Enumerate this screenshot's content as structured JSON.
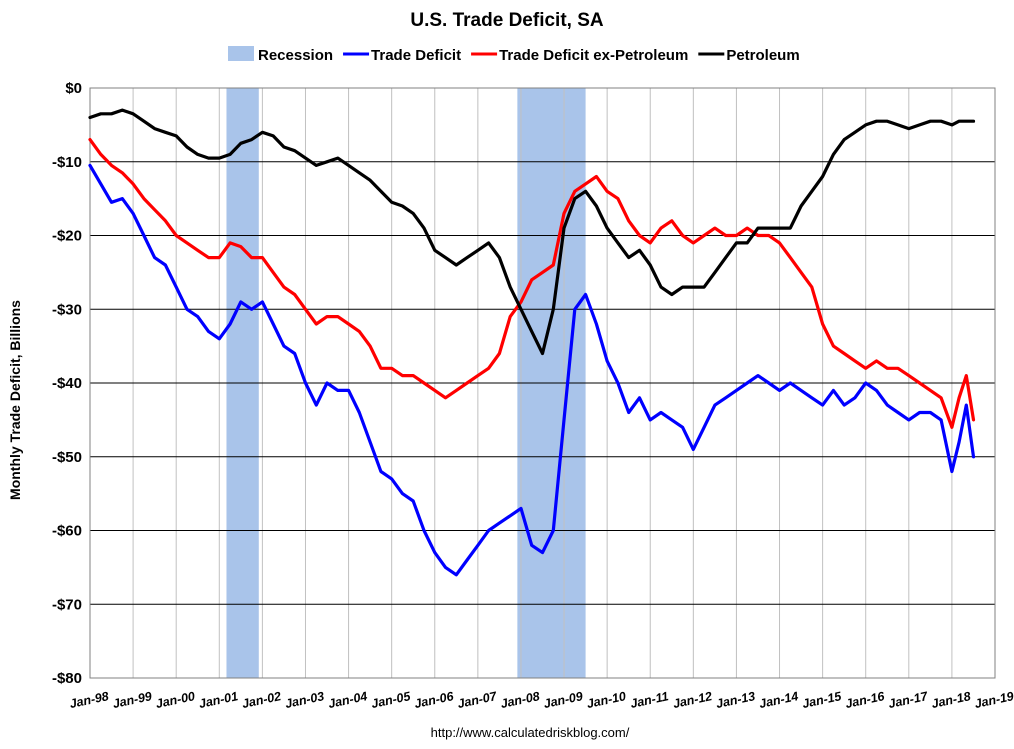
{
  "chart_data": {
    "type": "line",
    "title": "U.S. Trade Deficit, SA",
    "ylabel": "Monthly Trade Deficit, Billions",
    "xlabel": "",
    "source": "http://www.calculatedriskblog.com/",
    "ylim": [
      -80,
      0
    ],
    "xlim": [
      "1998-01",
      "2019-01"
    ],
    "grid": true,
    "legend_position": "top",
    "y_ticks": [
      {
        "value": 0,
        "label": "$0"
      },
      {
        "value": -10,
        "label": "-$10"
      },
      {
        "value": -20,
        "label": "-$20"
      },
      {
        "value": -30,
        "label": "-$30"
      },
      {
        "value": -40,
        "label": "-$40"
      },
      {
        "value": -50,
        "label": "-$50"
      },
      {
        "value": -60,
        "label": "-$60"
      },
      {
        "value": -70,
        "label": "-$70"
      },
      {
        "value": -80,
        "label": "-$80"
      }
    ],
    "x_ticks": [
      {
        "value": 1998,
        "label": "Jan-98"
      },
      {
        "value": 1999,
        "label": "Jan-99"
      },
      {
        "value": 2000,
        "label": "Jan-00"
      },
      {
        "value": 2001,
        "label": "Jan-01"
      },
      {
        "value": 2002,
        "label": "Jan-02"
      },
      {
        "value": 2003,
        "label": "Jan-03"
      },
      {
        "value": 2004,
        "label": "Jan-04"
      },
      {
        "value": 2005,
        "label": "Jan-05"
      },
      {
        "value": 2006,
        "label": "Jan-06"
      },
      {
        "value": 2007,
        "label": "Jan-07"
      },
      {
        "value": 2008,
        "label": "Jan-08"
      },
      {
        "value": 2009,
        "label": "Jan-09"
      },
      {
        "value": 2010,
        "label": "Jan-10"
      },
      {
        "value": 2011,
        "label": "Jan-11"
      },
      {
        "value": 2012,
        "label": "Jan-12"
      },
      {
        "value": 2013,
        "label": "Jan-13"
      },
      {
        "value": 2014,
        "label": "Jan-14"
      },
      {
        "value": 2015,
        "label": "Jan-15"
      },
      {
        "value": 2016,
        "label": "Jan-16"
      },
      {
        "value": 2017,
        "label": "Jan-17"
      },
      {
        "value": 2018,
        "label": "Jan-18"
      },
      {
        "value": 2019,
        "label": "Jan-19"
      }
    ],
    "recessions": [
      {
        "start": "2001-03",
        "end": "2001-11"
      },
      {
        "start": "2007-12",
        "end": "2009-06"
      }
    ],
    "recession_label": "Recession",
    "recession_color": "#a9c4ea",
    "series": [
      {
        "name": "Trade Deficit",
        "color": "#0000ff",
        "points": [
          [
            "1998-01",
            -10.5
          ],
          [
            "1998-04",
            -13
          ],
          [
            "1998-07",
            -15.5
          ],
          [
            "1998-10",
            -15
          ],
          [
            "1999-01",
            -17
          ],
          [
            "1999-04",
            -20
          ],
          [
            "1999-07",
            -23
          ],
          [
            "1999-10",
            -24
          ],
          [
            "2000-01",
            -27
          ],
          [
            "2000-04",
            -30
          ],
          [
            "2000-07",
            -31
          ],
          [
            "2000-10",
            -33
          ],
          [
            "2001-01",
            -34
          ],
          [
            "2001-04",
            -32
          ],
          [
            "2001-07",
            -29
          ],
          [
            "2001-10",
            -30
          ],
          [
            "2002-01",
            -29
          ],
          [
            "2002-04",
            -32
          ],
          [
            "2002-07",
            -35
          ],
          [
            "2002-10",
            -36
          ],
          [
            "2003-01",
            -40
          ],
          [
            "2003-04",
            -43
          ],
          [
            "2003-07",
            -40
          ],
          [
            "2003-10",
            -41
          ],
          [
            "2004-01",
            -41
          ],
          [
            "2004-04",
            -44
          ],
          [
            "2004-07",
            -48
          ],
          [
            "2004-10",
            -52
          ],
          [
            "2005-01",
            -53
          ],
          [
            "2005-04",
            -55
          ],
          [
            "2005-07",
            -56
          ],
          [
            "2005-10",
            -60
          ],
          [
            "2006-01",
            -63
          ],
          [
            "2006-04",
            -65
          ],
          [
            "2006-07",
            -66
          ],
          [
            "2006-10",
            -64
          ],
          [
            "2007-01",
            -62
          ],
          [
            "2007-04",
            -60
          ],
          [
            "2007-07",
            -59
          ],
          [
            "2007-10",
            -58
          ],
          [
            "2008-01",
            -57
          ],
          [
            "2008-04",
            -62
          ],
          [
            "2008-07",
            -63
          ],
          [
            "2008-10",
            -60
          ],
          [
            "2009-01",
            -45
          ],
          [
            "2009-04",
            -30
          ],
          [
            "2009-07",
            -28
          ],
          [
            "2009-10",
            -32
          ],
          [
            "2010-01",
            -37
          ],
          [
            "2010-04",
            -40
          ],
          [
            "2010-07",
            -44
          ],
          [
            "2010-10",
            -42
          ],
          [
            "2011-01",
            -45
          ],
          [
            "2011-04",
            -44
          ],
          [
            "2011-07",
            -45
          ],
          [
            "2011-10",
            -46
          ],
          [
            "2012-01",
            -49
          ],
          [
            "2012-04",
            -46
          ],
          [
            "2012-07",
            -43
          ],
          [
            "2012-10",
            -42
          ],
          [
            "2013-01",
            -41
          ],
          [
            "2013-04",
            -40
          ],
          [
            "2013-07",
            -39
          ],
          [
            "2013-10",
            -40
          ],
          [
            "2014-01",
            -41
          ],
          [
            "2014-04",
            -40
          ],
          [
            "2014-07",
            -41
          ],
          [
            "2014-10",
            -42
          ],
          [
            "2015-01",
            -43
          ],
          [
            "2015-04",
            -41
          ],
          [
            "2015-07",
            -43
          ],
          [
            "2015-10",
            -42
          ],
          [
            "2016-01",
            -40
          ],
          [
            "2016-04",
            -41
          ],
          [
            "2016-07",
            -43
          ],
          [
            "2016-10",
            -44
          ],
          [
            "2017-01",
            -45
          ],
          [
            "2017-04",
            -44
          ],
          [
            "2017-07",
            -44
          ],
          [
            "2017-10",
            -45
          ],
          [
            "2018-01",
            -52
          ],
          [
            "2018-03",
            -48
          ],
          [
            "2018-05",
            -43
          ],
          [
            "2018-07",
            -50
          ]
        ]
      },
      {
        "name": "Trade Deficit ex-Petroleum",
        "color": "#ff0000",
        "points": [
          [
            "1998-01",
            -7
          ],
          [
            "1998-04",
            -9
          ],
          [
            "1998-07",
            -10.5
          ],
          [
            "1998-10",
            -11.5
          ],
          [
            "1999-01",
            -13
          ],
          [
            "1999-04",
            -15
          ],
          [
            "1999-07",
            -16.5
          ],
          [
            "1999-10",
            -18
          ],
          [
            "2000-01",
            -20
          ],
          [
            "2000-04",
            -21
          ],
          [
            "2000-07",
            -22
          ],
          [
            "2000-10",
            -23
          ],
          [
            "2001-01",
            -23
          ],
          [
            "2001-04",
            -21
          ],
          [
            "2001-07",
            -21.5
          ],
          [
            "2001-10",
            -23
          ],
          [
            "2002-01",
            -23
          ],
          [
            "2002-04",
            -25
          ],
          [
            "2002-07",
            -27
          ],
          [
            "2002-10",
            -28
          ],
          [
            "2003-01",
            -30
          ],
          [
            "2003-04",
            -32
          ],
          [
            "2003-07",
            -31
          ],
          [
            "2003-10",
            -31
          ],
          [
            "2004-01",
            -32
          ],
          [
            "2004-04",
            -33
          ],
          [
            "2004-07",
            -35
          ],
          [
            "2004-10",
            -38
          ],
          [
            "2005-01",
            -38
          ],
          [
            "2005-04",
            -39
          ],
          [
            "2005-07",
            -39
          ],
          [
            "2005-10",
            -40
          ],
          [
            "2006-01",
            -41
          ],
          [
            "2006-04",
            -42
          ],
          [
            "2006-07",
            -41
          ],
          [
            "2006-10",
            -40
          ],
          [
            "2007-01",
            -39
          ],
          [
            "2007-04",
            -38
          ],
          [
            "2007-07",
            -36
          ],
          [
            "2007-10",
            -31
          ],
          [
            "2008-01",
            -29
          ],
          [
            "2008-04",
            -26
          ],
          [
            "2008-07",
            -25
          ],
          [
            "2008-10",
            -24
          ],
          [
            "2009-01",
            -17
          ],
          [
            "2009-04",
            -14
          ],
          [
            "2009-07",
            -13
          ],
          [
            "2009-10",
            -12
          ],
          [
            "2010-01",
            -14
          ],
          [
            "2010-04",
            -15
          ],
          [
            "2010-07",
            -18
          ],
          [
            "2010-10",
            -20
          ],
          [
            "2011-01",
            -21
          ],
          [
            "2011-04",
            -19
          ],
          [
            "2011-07",
            -18
          ],
          [
            "2011-10",
            -20
          ],
          [
            "2012-01",
            -21
          ],
          [
            "2012-04",
            -20
          ],
          [
            "2012-07",
            -19
          ],
          [
            "2012-10",
            -20
          ],
          [
            "2013-01",
            -20
          ],
          [
            "2013-04",
            -19
          ],
          [
            "2013-07",
            -20
          ],
          [
            "2013-10",
            -20
          ],
          [
            "2014-01",
            -21
          ],
          [
            "2014-04",
            -23
          ],
          [
            "2014-07",
            -25
          ],
          [
            "2014-10",
            -27
          ],
          [
            "2015-01",
            -32
          ],
          [
            "2015-04",
            -35
          ],
          [
            "2015-07",
            -36
          ],
          [
            "2015-10",
            -37
          ],
          [
            "2016-01",
            -38
          ],
          [
            "2016-04",
            -37
          ],
          [
            "2016-07",
            -38
          ],
          [
            "2016-10",
            -38
          ],
          [
            "2017-01",
            -39
          ],
          [
            "2017-04",
            -40
          ],
          [
            "2017-07",
            -41
          ],
          [
            "2017-10",
            -42
          ],
          [
            "2018-01",
            -46
          ],
          [
            "2018-03",
            -42
          ],
          [
            "2018-05",
            -39
          ],
          [
            "2018-07",
            -45
          ]
        ]
      },
      {
        "name": "Petroleum",
        "color": "#000000",
        "points": [
          [
            "1998-01",
            -4
          ],
          [
            "1998-04",
            -3.5
          ],
          [
            "1998-07",
            -3.5
          ],
          [
            "1998-10",
            -3
          ],
          [
            "1999-01",
            -3.5
          ],
          [
            "1999-04",
            -4.5
          ],
          [
            "1999-07",
            -5.5
          ],
          [
            "1999-10",
            -6
          ],
          [
            "2000-01",
            -6.5
          ],
          [
            "2000-04",
            -8
          ],
          [
            "2000-07",
            -9
          ],
          [
            "2000-10",
            -9.5
          ],
          [
            "2001-01",
            -9.5
          ],
          [
            "2001-04",
            -9
          ],
          [
            "2001-07",
            -7.5
          ],
          [
            "2001-10",
            -7
          ],
          [
            "2002-01",
            -6
          ],
          [
            "2002-04",
            -6.5
          ],
          [
            "2002-07",
            -8
          ],
          [
            "2002-10",
            -8.5
          ],
          [
            "2003-01",
            -9.5
          ],
          [
            "2003-04",
            -10.5
          ],
          [
            "2003-07",
            -10
          ],
          [
            "2003-10",
            -9.5
          ],
          [
            "2004-01",
            -10.5
          ],
          [
            "2004-04",
            -11.5
          ],
          [
            "2004-07",
            -12.5
          ],
          [
            "2004-10",
            -14
          ],
          [
            "2005-01",
            -15.5
          ],
          [
            "2005-04",
            -16
          ],
          [
            "2005-07",
            -17
          ],
          [
            "2005-10",
            -19
          ],
          [
            "2006-01",
            -22
          ],
          [
            "2006-04",
            -23
          ],
          [
            "2006-07",
            -24
          ],
          [
            "2006-10",
            -23
          ],
          [
            "2007-01",
            -22
          ],
          [
            "2007-04",
            -21
          ],
          [
            "2007-07",
            -23
          ],
          [
            "2007-10",
            -27
          ],
          [
            "2008-01",
            -30
          ],
          [
            "2008-04",
            -33
          ],
          [
            "2008-07",
            -36
          ],
          [
            "2008-10",
            -30
          ],
          [
            "2009-01",
            -19
          ],
          [
            "2009-04",
            -15
          ],
          [
            "2009-07",
            -14
          ],
          [
            "2009-10",
            -16
          ],
          [
            "2010-01",
            -19
          ],
          [
            "2010-04",
            -21
          ],
          [
            "2010-07",
            -23
          ],
          [
            "2010-10",
            -22
          ],
          [
            "2011-01",
            -24
          ],
          [
            "2011-04",
            -27
          ],
          [
            "2011-07",
            -28
          ],
          [
            "2011-10",
            -27
          ],
          [
            "2012-01",
            -27
          ],
          [
            "2012-04",
            -27
          ],
          [
            "2012-07",
            -25
          ],
          [
            "2012-10",
            -23
          ],
          [
            "2013-01",
            -21
          ],
          [
            "2013-04",
            -21
          ],
          [
            "2013-07",
            -19
          ],
          [
            "2013-10",
            -19
          ],
          [
            "2014-01",
            -19
          ],
          [
            "2014-04",
            -19
          ],
          [
            "2014-07",
            -16
          ],
          [
            "2014-10",
            -14
          ],
          [
            "2015-01",
            -12
          ],
          [
            "2015-04",
            -9
          ],
          [
            "2015-07",
            -7
          ],
          [
            "2015-10",
            -6
          ],
          [
            "2016-01",
            -5
          ],
          [
            "2016-04",
            -4.5
          ],
          [
            "2016-07",
            -4.5
          ],
          [
            "2016-10",
            -5
          ],
          [
            "2017-01",
            -5.5
          ],
          [
            "2017-04",
            -5
          ],
          [
            "2017-07",
            -4.5
          ],
          [
            "2017-10",
            -4.5
          ],
          [
            "2018-01",
            -5
          ],
          [
            "2018-03",
            -4.5
          ],
          [
            "2018-05",
            -4.5
          ],
          [
            "2018-07",
            -4.5
          ]
        ]
      }
    ]
  }
}
